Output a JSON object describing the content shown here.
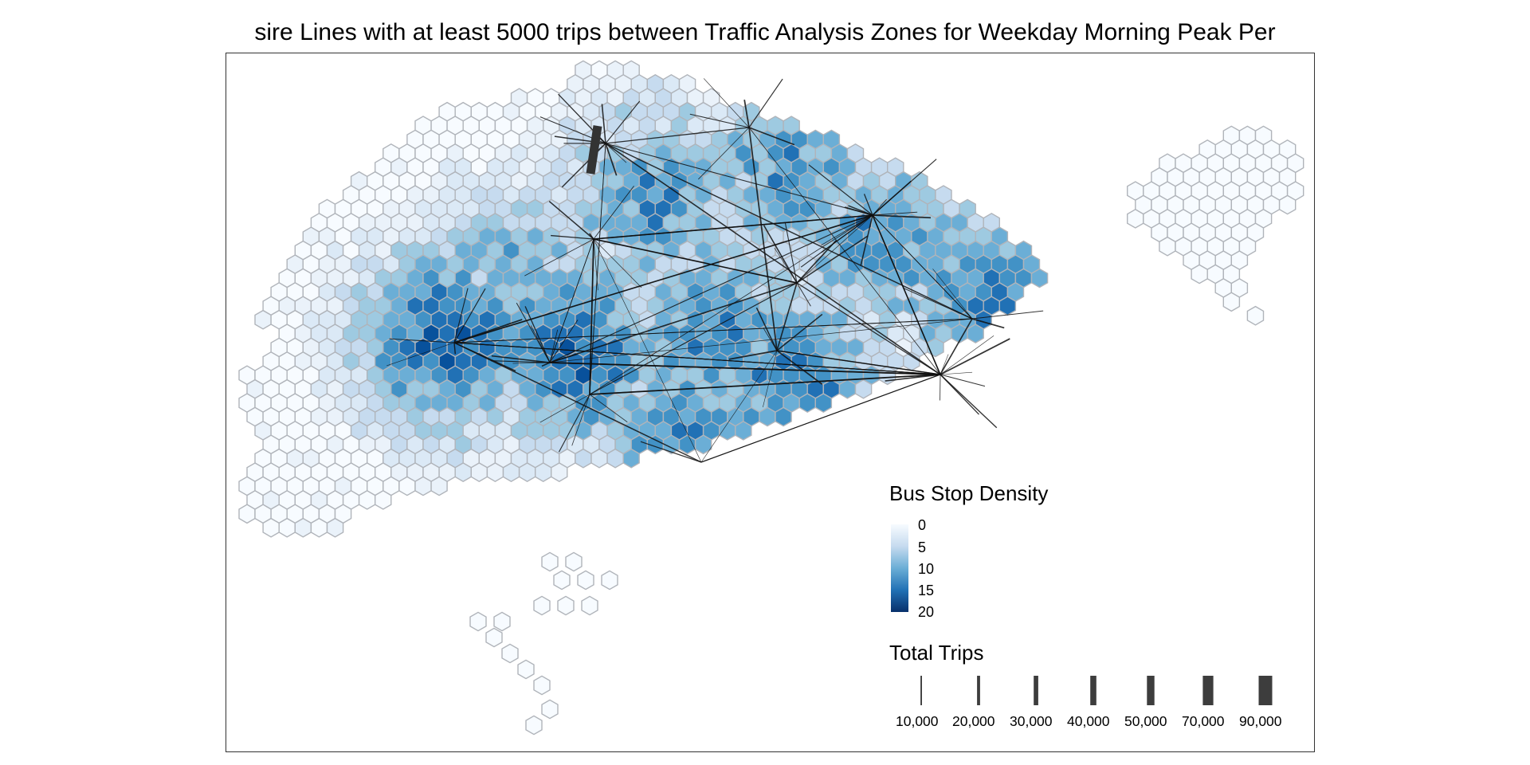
{
  "map": {
    "title": "sire Lines with at least 5000 trips between Traffic Analysis Zones for Weekday Morning Peak Per"
  },
  "legend_density": {
    "title": "Bus Stop Density",
    "ticks": [
      "0",
      "5",
      "10",
      "15",
      "20"
    ],
    "colors": [
      "#f7fbff",
      "#c6dbef",
      "#6baed6",
      "#2171b5",
      "#08306b"
    ]
  },
  "legend_trips": {
    "title": "Total Trips",
    "labels": [
      "10,000",
      "20,000",
      "30,000",
      "40,000",
      "50,000",
      "70,000",
      "90,000"
    ],
    "values": [
      10000,
      20000,
      30000,
      40000,
      50000,
      70000,
      90000
    ],
    "line_color": "#3d3d3d"
  },
  "style": {
    "hex_stroke": "#b0b4ba",
    "desire_line_color": "#111111"
  }
}
